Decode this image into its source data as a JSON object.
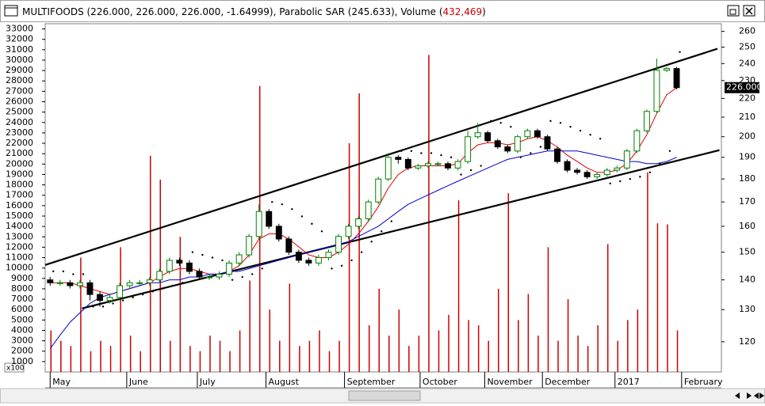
{
  "chart_data": {
    "type": "candlestick",
    "title_parts": [
      "MULTIFOODS (226.000, 226.000, 226.000, -1.64999), Parabolic SAR (245.633), Volume (",
      "432,469",
      ")"
    ],
    "title_highlight_color": "#cc0000",
    "volume_multiplier_label": "x100",
    "xlim": [
      -0.5,
      67.5
    ],
    "xticks": [
      {
        "value": 0,
        "label": "May"
      },
      {
        "value": 7.7,
        "label": "June"
      },
      {
        "value": 14.8,
        "label": "July"
      },
      {
        "value": 21.7,
        "label": "August"
      },
      {
        "value": 29.6,
        "label": "September"
      },
      {
        "value": 37.2,
        "label": "October"
      },
      {
        "value": 43.7,
        "label": "November"
      },
      {
        "value": 49.5,
        "label": "December"
      },
      {
        "value": 56.8,
        "label": "2017"
      },
      {
        "value": 63.5,
        "label": "February"
      }
    ],
    "ylim": [
      0,
      33500
    ],
    "yticks": [
      1000,
      2000,
      3000,
      4000,
      5000,
      6000,
      7000,
      8000,
      9000,
      10000,
      11000,
      12000,
      13000,
      14000,
      15000,
      16000,
      17000,
      18000,
      19000,
      20000,
      21000,
      22000,
      23000,
      24000,
      25000,
      26000,
      27000,
      28000,
      29000,
      30000,
      31000,
      32000,
      33000
    ],
    "y2lim": [
      111.3,
      265
    ],
    "y2ticks": [
      120,
      130,
      140,
      150,
      160,
      170,
      180,
      190,
      200,
      210,
      220,
      230,
      240,
      250,
      260
    ],
    "y2_log": true,
    "last_price": {
      "value": 226,
      "label": "226.000"
    },
    "candles": {
      "up_color": "#008000",
      "down_color": "#000000",
      "open": [
        140,
        139,
        139,
        138,
        139,
        135,
        133,
        134,
        138,
        139,
        139,
        140,
        143,
        147,
        146,
        143,
        141,
        141,
        142,
        146,
        149,
        156,
        166,
        160,
        155,
        150,
        147,
        146,
        148,
        150,
        156,
        160,
        163,
        170,
        180,
        190,
        189,
        185,
        186,
        187,
        187,
        185,
        188,
        200,
        202,
        198,
        195,
        193,
        200,
        203,
        200,
        194,
        188,
        184,
        183,
        181,
        182,
        184,
        185,
        193,
        203,
        213,
        236,
        237
      ],
      "high": [
        141,
        140,
        140,
        140,
        140,
        136,
        135,
        139,
        140,
        140,
        141,
        144,
        148,
        148,
        147,
        144,
        142,
        143,
        147,
        150,
        157,
        169,
        167,
        161,
        156,
        151,
        148,
        149,
        151,
        157,
        161,
        164,
        171,
        181,
        192,
        191,
        190,
        187,
        188,
        188,
        188,
        189,
        203,
        207,
        203,
        199,
        196,
        201,
        204,
        204,
        201,
        195,
        189,
        185,
        184,
        183,
        185,
        186,
        194,
        204,
        214,
        243,
        238,
        238
      ],
      "low": [
        138,
        138,
        137,
        137,
        133,
        131,
        132,
        133,
        137,
        138,
        138,
        139,
        142,
        145,
        142,
        140,
        140,
        140,
        141,
        145,
        148,
        155,
        159,
        154,
        149,
        146,
        145,
        145,
        147,
        149,
        155,
        159,
        162,
        169,
        179,
        187,
        184,
        184,
        185,
        186,
        184,
        184,
        187,
        199,
        197,
        194,
        192,
        192,
        199,
        199,
        193,
        187,
        183,
        182,
        180,
        180,
        181,
        183,
        184,
        192,
        202,
        212,
        235,
        225
      ],
      "close": [
        139,
        139,
        138,
        139,
        135,
        133,
        134,
        138,
        139,
        139,
        140,
        143,
        147,
        146,
        143,
        141,
        141,
        142,
        146,
        149,
        156,
        166,
        160,
        155,
        150,
        147,
        146,
        148,
        150,
        156,
        160,
        163,
        170,
        180,
        190,
        189,
        185,
        186,
        187,
        187,
        185,
        188,
        200,
        202,
        198,
        195,
        193,
        200,
        203,
        200,
        194,
        188,
        184,
        183,
        181,
        182,
        184,
        185,
        193,
        203,
        213,
        236,
        237,
        226
      ]
    },
    "volume": {
      "color": "#cc0000",
      "values": [
        4000,
        3000,
        2500,
        11000,
        2000,
        3000,
        2500,
        12000,
        3500,
        2000,
        20800,
        18500,
        3000,
        13000,
        2500,
        2000,
        3500,
        3000,
        2000,
        4000,
        8800,
        27500,
        6000,
        3000,
        8500,
        2500,
        3000,
        4000,
        2000,
        3000,
        22000,
        26800,
        4500,
        8000,
        3500,
        6000,
        2500,
        3500,
        30500,
        4000,
        5500,
        16500,
        5000,
        4500,
        3000,
        8000,
        17200,
        5000,
        7500,
        3500,
        12000,
        3000,
        7000,
        3500,
        2500,
        4500,
        12300,
        3000,
        5000,
        6000,
        19200,
        14300,
        14200,
        4000
      ]
    },
    "lines": [
      {
        "color": "#dd0000",
        "values": [
          139,
          139,
          139,
          138,
          137,
          136,
          135,
          136,
          137,
          138,
          139,
          141,
          143,
          144,
          144,
          143,
          142,
          142,
          143,
          145,
          149,
          155,
          157,
          157,
          155,
          152,
          149,
          148,
          148,
          150,
          153,
          157,
          162,
          168,
          176,
          182,
          185,
          186,
          186,
          186,
          186,
          187,
          192,
          196,
          197,
          197,
          196,
          197,
          199,
          200,
          198,
          195,
          191,
          188,
          185,
          183,
          183,
          184,
          187,
          193,
          201,
          212,
          222,
          226
        ]
      },
      {
        "color": "#0000cc",
        "values": [
          118,
          122,
          126,
          129,
          132,
          134,
          135,
          136,
          137,
          138,
          139,
          139,
          140,
          140,
          141,
          141,
          142,
          142,
          143,
          143,
          144,
          145,
          146,
          147,
          148,
          149,
          150,
          151,
          152,
          153,
          154,
          156,
          158,
          160,
          163,
          166,
          169,
          171,
          173,
          175,
          177,
          179,
          181,
          183,
          185,
          187,
          189,
          190,
          191,
          192,
          193,
          193,
          193,
          193,
          192,
          191,
          190,
          189,
          188,
          188,
          187,
          187,
          188,
          190
        ]
      }
    ],
    "sar": {
      "color": "#000000",
      "values": [
        143,
        143,
        142,
        142,
        131,
        131,
        132,
        133,
        134,
        135,
        136,
        137,
        138,
        139,
        150,
        149,
        148,
        147,
        140,
        141,
        142,
        144,
        170,
        169,
        167,
        164,
        161,
        158,
        144,
        145,
        147,
        150,
        154,
        158,
        162,
        193,
        193,
        192,
        192,
        191,
        190,
        182,
        184,
        186,
        208,
        207,
        205,
        190,
        192,
        195,
        208,
        207,
        205,
        203,
        201,
        199,
        178,
        179,
        180,
        181,
        183,
        187,
        193,
        247
      ]
    },
    "trendlines": [
      {
        "x": [
          -0.5,
          67.1
        ],
        "y": [
          145.3,
          249
        ]
      },
      {
        "x": [
          3.2,
          67.3
        ],
        "y": [
          130.4,
          193.4
        ]
      }
    ]
  }
}
